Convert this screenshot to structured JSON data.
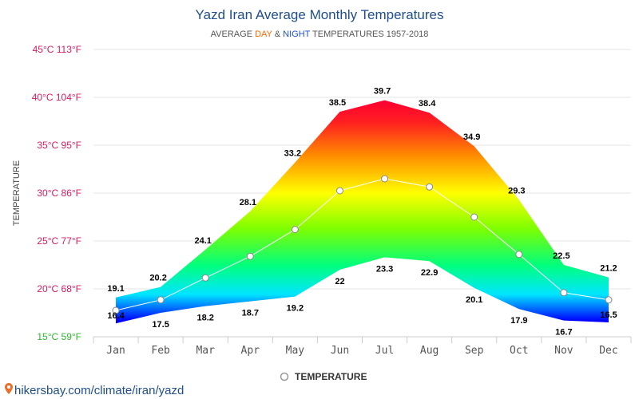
{
  "chart_data": {
    "type": "area",
    "title": "Yazd Iran Average Monthly Temperatures",
    "subtitle": {
      "prefix": "AVERAGE ",
      "day": "DAY",
      "amp": " & ",
      "night": "NIGHT",
      "suffix": " TEMPERATURES 1957-2018"
    },
    "ylabel": "TEMPERATURE",
    "xlabel": "",
    "categories": [
      "Jan",
      "Feb",
      "Mar",
      "Apr",
      "May",
      "Jun",
      "Jul",
      "Aug",
      "Sep",
      "Oct",
      "Nov",
      "Dec"
    ],
    "series": [
      {
        "name": "DAY",
        "values": [
          19.1,
          20.2,
          24.1,
          28.1,
          33.2,
          38.5,
          39.7,
          38.4,
          34.9,
          29.3,
          22.5,
          21.2
        ]
      },
      {
        "name": "NIGHT",
        "values": [
          16.4,
          17.5,
          18.2,
          18.7,
          19.2,
          22,
          23.3,
          22.9,
          20.1,
          17.9,
          16.7,
          16.5
        ]
      },
      {
        "name": "TEMPERATURE",
        "values": [
          17.75,
          18.85,
          21.15,
          23.4,
          26.2,
          30.25,
          31.5,
          30.65,
          27.5,
          23.6,
          19.6,
          18.85
        ]
      }
    ],
    "yticks": [
      {
        "value": 15,
        "label": "15°C 59°F",
        "color": "#2eb82e"
      },
      {
        "value": 20,
        "label": "20°C 68°F",
        "color": "#d81b60"
      },
      {
        "value": 25,
        "label": "25°C 77°F",
        "color": "#d81b60"
      },
      {
        "value": 30,
        "label": "30°C 86°F",
        "color": "#d81b60"
      },
      {
        "value": 35,
        "label": "35°C 95°F",
        "color": "#d81b60"
      },
      {
        "value": 40,
        "label": "40°C 104°F",
        "color": "#d81b60"
      },
      {
        "value": 45,
        "label": "45°C 113°F",
        "color": "#d81b60"
      }
    ],
    "ylim": [
      15,
      45
    ],
    "grid": true,
    "legend": {
      "label": "TEMPERATURE",
      "position": "bottom"
    },
    "colors": {
      "title": "#1f4e8c",
      "day_word": "#ff6600",
      "night_word": "#1e4fd8",
      "subtitle": "#555555",
      "data_label": "#000000",
      "grid": "#e6e6e6",
      "axis_label": "#444444",
      "mean_line": "#ffffff",
      "mean_point_stroke": "#888888"
    }
  },
  "footer": {
    "pin_icon": "map-pin-icon",
    "text": "hikersbay.com/climate/iran/yazd"
  }
}
